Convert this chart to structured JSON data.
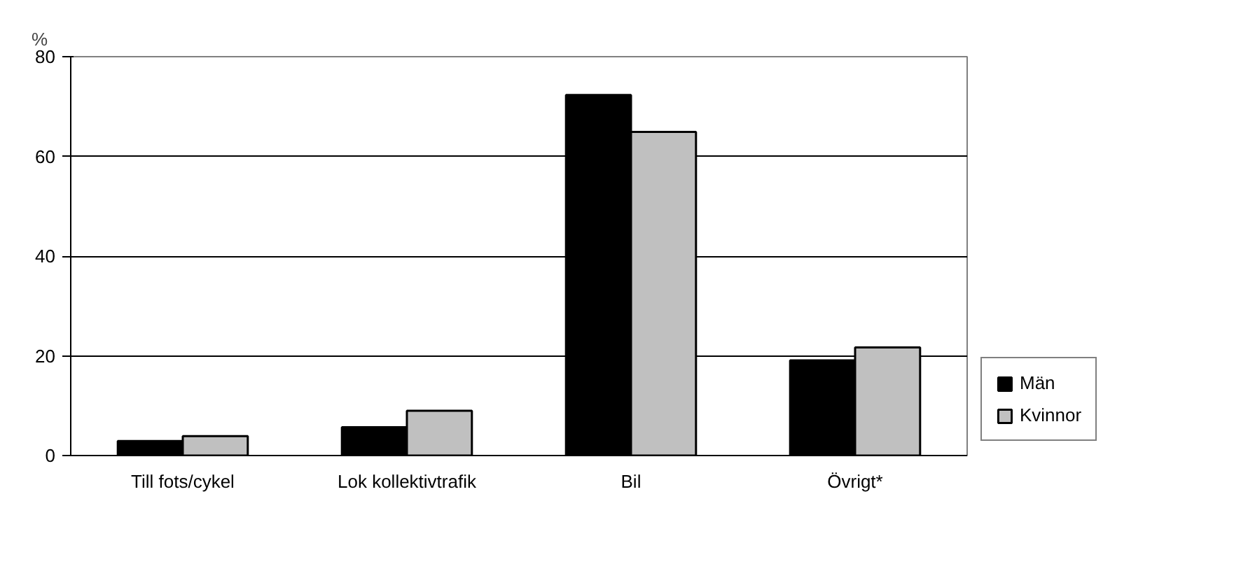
{
  "chart_data": {
    "type": "bar",
    "ylabel": "%",
    "categories": [
      "Till fots/cykel",
      "Lok kollektivtrafik",
      "Bil",
      "Övrigt*"
    ],
    "series": [
      {
        "name": "Män",
        "color": "#000000",
        "values": [
          2.9,
          5.7,
          72.3,
          19.1
        ]
      },
      {
        "name": "Kvinnor",
        "color": "#c0c0c0",
        "values": [
          3.9,
          9,
          64.9,
          21.7
        ]
      }
    ],
    "ylim": [
      0,
      80
    ],
    "yticks": [
      0,
      20,
      40,
      60,
      80
    ],
    "grid": "y",
    "legend": "right"
  }
}
